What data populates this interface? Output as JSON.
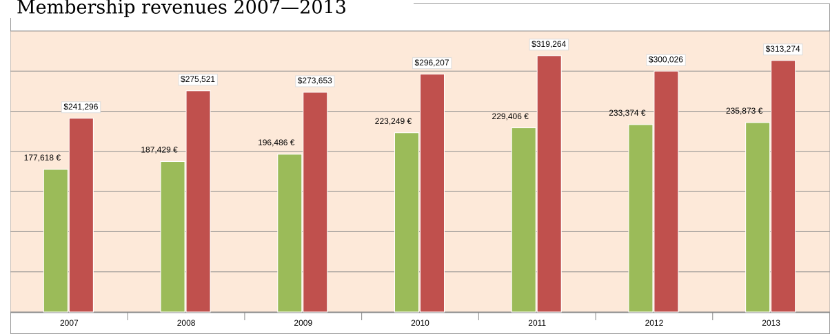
{
  "chart_data": {
    "type": "bar",
    "title": "Membership revenues 2007—2013",
    "categories": [
      "2007",
      "2008",
      "2009",
      "2010",
      "2011",
      "2012",
      "2013"
    ],
    "series": [
      {
        "color": "#9bbb59",
        "values": [
          177618,
          187429,
          196486,
          223249,
          229406,
          233374,
          235873
        ],
        "value_labels": [
          "177,618 €",
          "187,429 €",
          "196,486 €",
          "223,249 €",
          "229,406 €",
          "233,374 €",
          "235,873 €"
        ]
      },
      {
        "color": "#c0504d",
        "values": [
          241296,
          275521,
          273653,
          296207,
          319264,
          300026,
          313274
        ],
        "value_labels": [
          "$241,296",
          "$275,521",
          "$273,653",
          "$296,207",
          "$319,264",
          "$300,026",
          "$313,274"
        ]
      }
    ],
    "ylim": [
      0,
      350000
    ],
    "yticks": [
      0,
      50000,
      100000,
      150000,
      200000,
      250000,
      300000,
      350000
    ],
    "grid": true,
    "background": "#fde9d9"
  }
}
